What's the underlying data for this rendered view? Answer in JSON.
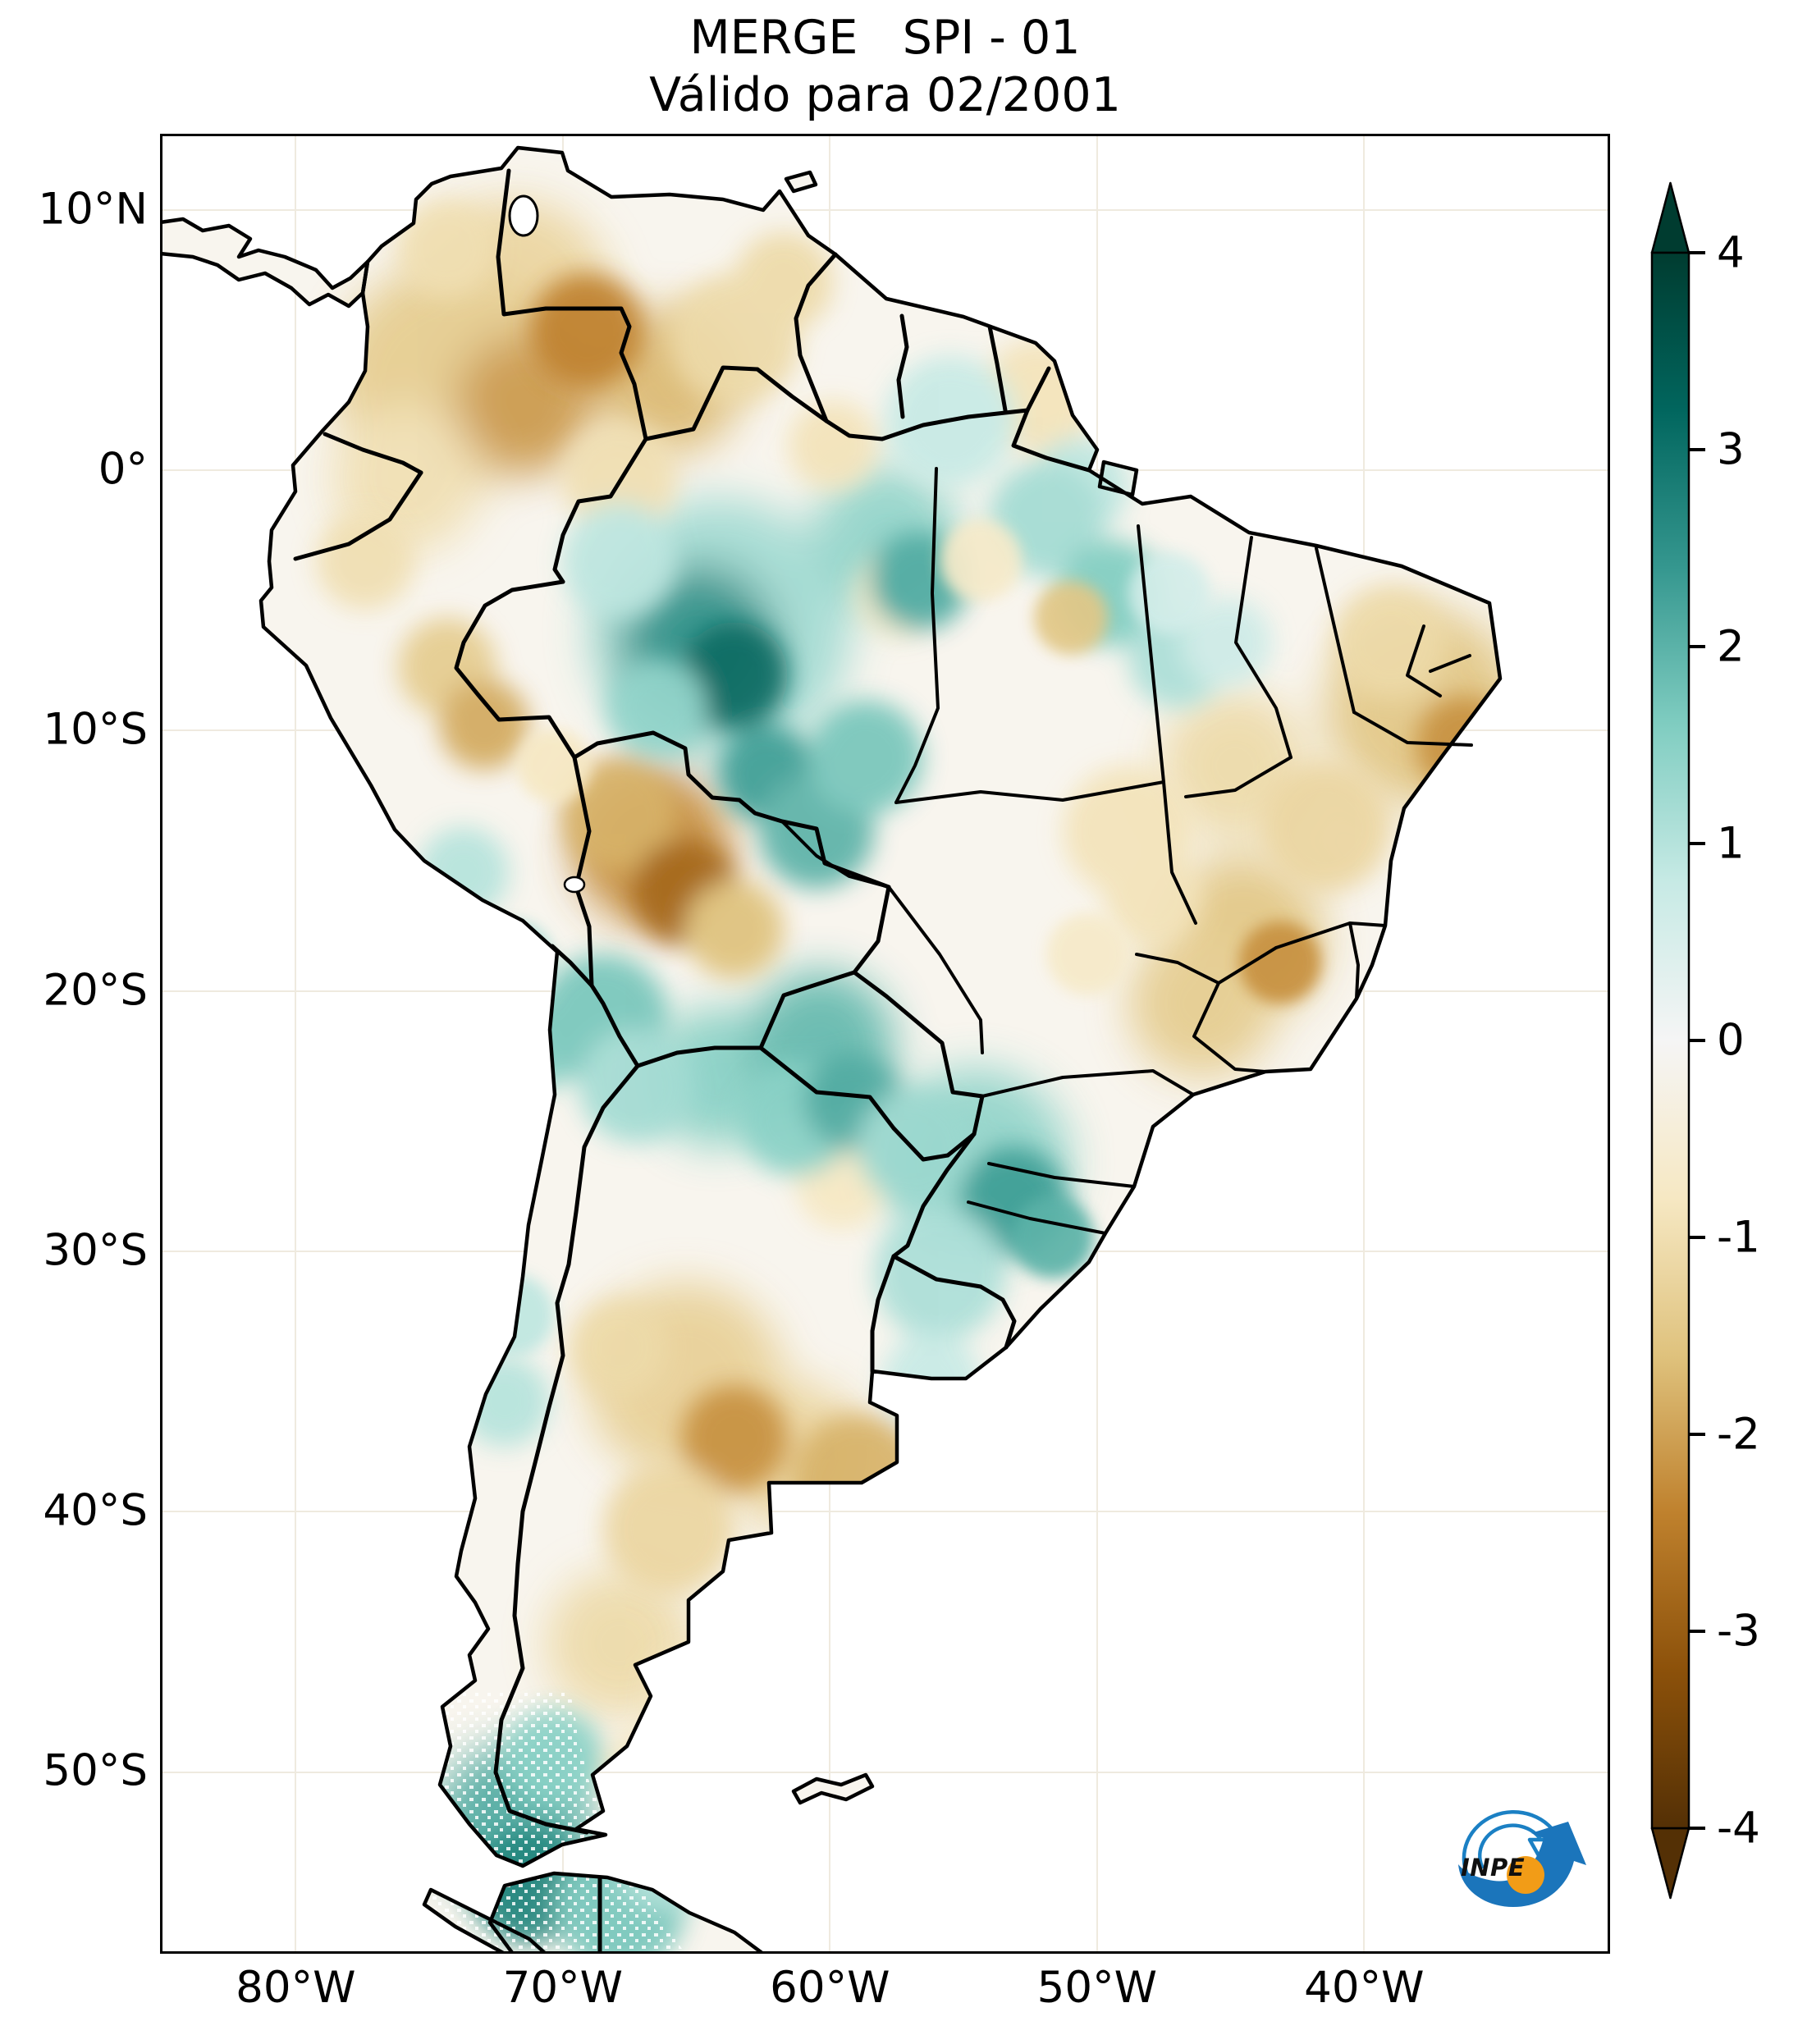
{
  "title": {
    "line1": "MERGE   SPI - 01",
    "line2": "Válido para 02/2001"
  },
  "logo": {
    "text": "INPE"
  },
  "colors": {
    "land_base": "#f8f5ee",
    "ocean": "#ffffff",
    "border": "#000000",
    "logo_blue": "#1b77c0",
    "logo_orange": "#f29c17"
  },
  "chart_data": {
    "type": "heatmap",
    "title": "MERGE   SPI - 01",
    "subtitle": "Válido para 02/2001",
    "dataset": "MERGE",
    "index": "SPI-01",
    "valid_month": "02/2001",
    "region": "South America",
    "colormap": "BrBG (brown = dry, teal = wet)",
    "value_range": [
      -4,
      4
    ],
    "colorbar_ticks": [
      4,
      3,
      2,
      1,
      0,
      -1,
      -2,
      -3,
      -4
    ],
    "x_axis": {
      "ticks": [
        {
          "label": "80°W",
          "deg_west": 80
        },
        {
          "label": "70°W",
          "deg_west": 70
        },
        {
          "label": "60°W",
          "deg_west": 60
        },
        {
          "label": "50°W",
          "deg_west": 50
        },
        {
          "label": "40°W",
          "deg_west": 40
        }
      ]
    },
    "y_axis": {
      "ticks": [
        {
          "label": "10°N",
          "deg": 10
        },
        {
          "label": "0°",
          "deg": 0
        },
        {
          "label": "10°S",
          "deg": -10
        },
        {
          "label": "20°S",
          "deg": -20
        },
        {
          "label": "30°S",
          "deg": -30
        },
        {
          "label": "40°S",
          "deg": -40
        },
        {
          "label": "50°S",
          "deg": -50
        }
      ]
    },
    "colormap_stops": [
      [
        0.0,
        "#543005"
      ],
      [
        0.1,
        "#8c510a"
      ],
      [
        0.2,
        "#bf812d"
      ],
      [
        0.3,
        "#dfc27d"
      ],
      [
        0.4,
        "#f6e8c3"
      ],
      [
        0.5,
        "#f5f5f5"
      ],
      [
        0.6,
        "#c7eae5"
      ],
      [
        0.7,
        "#80cdc1"
      ],
      [
        0.8,
        "#35978f"
      ],
      [
        0.9,
        "#01665e"
      ],
      [
        1.0,
        "#003c30"
      ]
    ],
    "field_blobs": [
      [
        430,
        200,
        120,
        -1.2
      ],
      [
        520,
        240,
        70,
        -2.4
      ],
      [
        350,
        300,
        140,
        -1.4
      ],
      [
        445,
        330,
        85,
        -2.1
      ],
      [
        300,
        420,
        90,
        -1.0
      ],
      [
        620,
        300,
        90,
        -1.7
      ],
      [
        700,
        250,
        80,
        -1.1
      ],
      [
        560,
        420,
        70,
        -1.0
      ],
      [
        820,
        380,
        55,
        -0.9
      ],
      [
        250,
        520,
        60,
        -1.0
      ],
      [
        1070,
        320,
        70,
        -0.9
      ],
      [
        760,
        180,
        60,
        -1.1
      ],
      [
        350,
        140,
        60,
        -1.0
      ],
      [
        350,
        650,
        60,
        -1.4
      ],
      [
        395,
        720,
        55,
        -1.9
      ],
      [
        560,
        830,
        70,
        -1.8
      ],
      [
        600,
        870,
        95,
        -2.3
      ],
      [
        640,
        925,
        65,
        -2.8
      ],
      [
        700,
        970,
        60,
        -1.6
      ],
      [
        480,
        770,
        45,
        -0.8
      ],
      [
        900,
        560,
        55,
        -0.7
      ],
      [
        1000,
        520,
        50,
        -0.7
      ],
      [
        1110,
        590,
        45,
        -1.5
      ],
      [
        1180,
        850,
        80,
        -0.9
      ],
      [
        1210,
        930,
        60,
        -0.9
      ],
      [
        1540,
        700,
        120,
        -1.5
      ],
      [
        1590,
        745,
        60,
        -2.2
      ],
      [
        1500,
        620,
        70,
        -1.1
      ],
      [
        1420,
        845,
        80,
        -1.2
      ],
      [
        1310,
        770,
        90,
        -1.1
      ],
      [
        1320,
        980,
        100,
        -1.5
      ],
      [
        1365,
        1010,
        50,
        -2.2
      ],
      [
        1270,
        1060,
        90,
        -1.4
      ],
      [
        1130,
        1000,
        50,
        -0.7
      ],
      [
        830,
        1280,
        55,
        -0.8
      ],
      [
        640,
        1520,
        120,
        -1.3
      ],
      [
        700,
        1590,
        65,
        -2.2
      ],
      [
        560,
        1480,
        60,
        -1.1
      ],
      [
        620,
        1700,
        80,
        -1.2
      ],
      [
        850,
        1640,
        80,
        -1.8
      ],
      [
        770,
        1610,
        90,
        -1.2
      ],
      [
        560,
        1840,
        90,
        -1.1
      ],
      [
        660,
        1905,
        70,
        -0.9
      ],
      [
        600,
        2000,
        60,
        -0.8
      ],
      [
        681,
        604,
        160,
        1.2
      ],
      [
        655,
        620,
        95,
        2.5
      ],
      [
        700,
        660,
        65,
        3.1
      ],
      [
        740,
        780,
        60,
        2.3
      ],
      [
        800,
        850,
        70,
        2.0
      ],
      [
        860,
        760,
        70,
        1.7
      ],
      [
        885,
        494,
        90,
        1.4
      ],
      [
        925,
        545,
        60,
        2.1
      ],
      [
        963,
        350,
        80,
        0.8
      ],
      [
        1120,
        430,
        60,
        0.9
      ],
      [
        1080,
        470,
        70,
        1.2
      ],
      [
        1160,
        560,
        65,
        1.6
      ],
      [
        1240,
        640,
        60,
        1.1
      ],
      [
        1300,
        620,
        55,
        0.7
      ],
      [
        1230,
        560,
        50,
        0.6
      ],
      [
        560,
        520,
        70,
        0.9
      ],
      [
        605,
        700,
        60,
        1.4
      ],
      [
        370,
        900,
        55,
        1.0
      ],
      [
        430,
        1010,
        50,
        1.2
      ],
      [
        460,
        1110,
        55,
        1.5
      ],
      [
        540,
        1080,
        80,
        1.7
      ],
      [
        580,
        1160,
        70,
        1.2
      ],
      [
        680,
        1150,
        85,
        1.5
      ],
      [
        775,
        1200,
        70,
        1.5
      ],
      [
        805,
        1110,
        90,
        1.9
      ],
      [
        845,
        1180,
        60,
        2.1
      ],
      [
        920,
        1235,
        70,
        1.3
      ],
      [
        994,
        1253,
        115,
        1.4
      ],
      [
        1040,
        1300,
        65,
        2.3
      ],
      [
        1088,
        1345,
        50,
        2.0
      ],
      [
        950,
        1390,
        80,
        1.1
      ],
      [
        940,
        1520,
        60,
        0.8
      ],
      [
        430,
        1440,
        50,
        0.9
      ],
      [
        420,
        1545,
        55,
        1.0
      ],
      [
        480,
        1980,
        60,
        1.5
      ],
      [
        430,
        2060,
        95,
        2.1
      ],
      [
        450,
        2135,
        70,
        2.7
      ],
      [
        560,
        2160,
        80,
        1.7
      ],
      [
        615,
        2105,
        60,
        1.1
      ]
    ],
    "notable_anomalies": [
      {
        "area": "Colombia / NW Venezuela",
        "spi": "-1.5 to -2.5 (dry)"
      },
      {
        "area": "Central Amazon (Amazonas, Brazil)",
        "spi": "+2 to +3 (wet)"
      },
      {
        "area": "SW Amazon (Acre / Rondônia / Madre de Dios)",
        "spi": "-2 to -3 (dry)"
      },
      {
        "area": "Northeast Brazil (Ceará–Pernambuco)",
        "spi": "-1 to -2.5 (dry)"
      },
      {
        "area": "Central Brazil (Goiás / Minas Gerais / Bahia)",
        "spi": "-1 to -2.2 (dry)"
      },
      {
        "area": "Mato Grosso do Sul / Paraguay / S Bolivia",
        "spi": "+1 to +2 (wet)"
      },
      {
        "area": "Southern Brazil (Paraná / Santa Catarina)",
        "spi": "+1.5 to +2.5 (wet)"
      },
      {
        "area": "Central-west Argentina (Cuyo)",
        "spi": "-1.5 to -2.5 (dry)"
      },
      {
        "area": "Southern Chile / Patagonia tip",
        "spi": "+2 to +3 (wet)"
      }
    ]
  }
}
